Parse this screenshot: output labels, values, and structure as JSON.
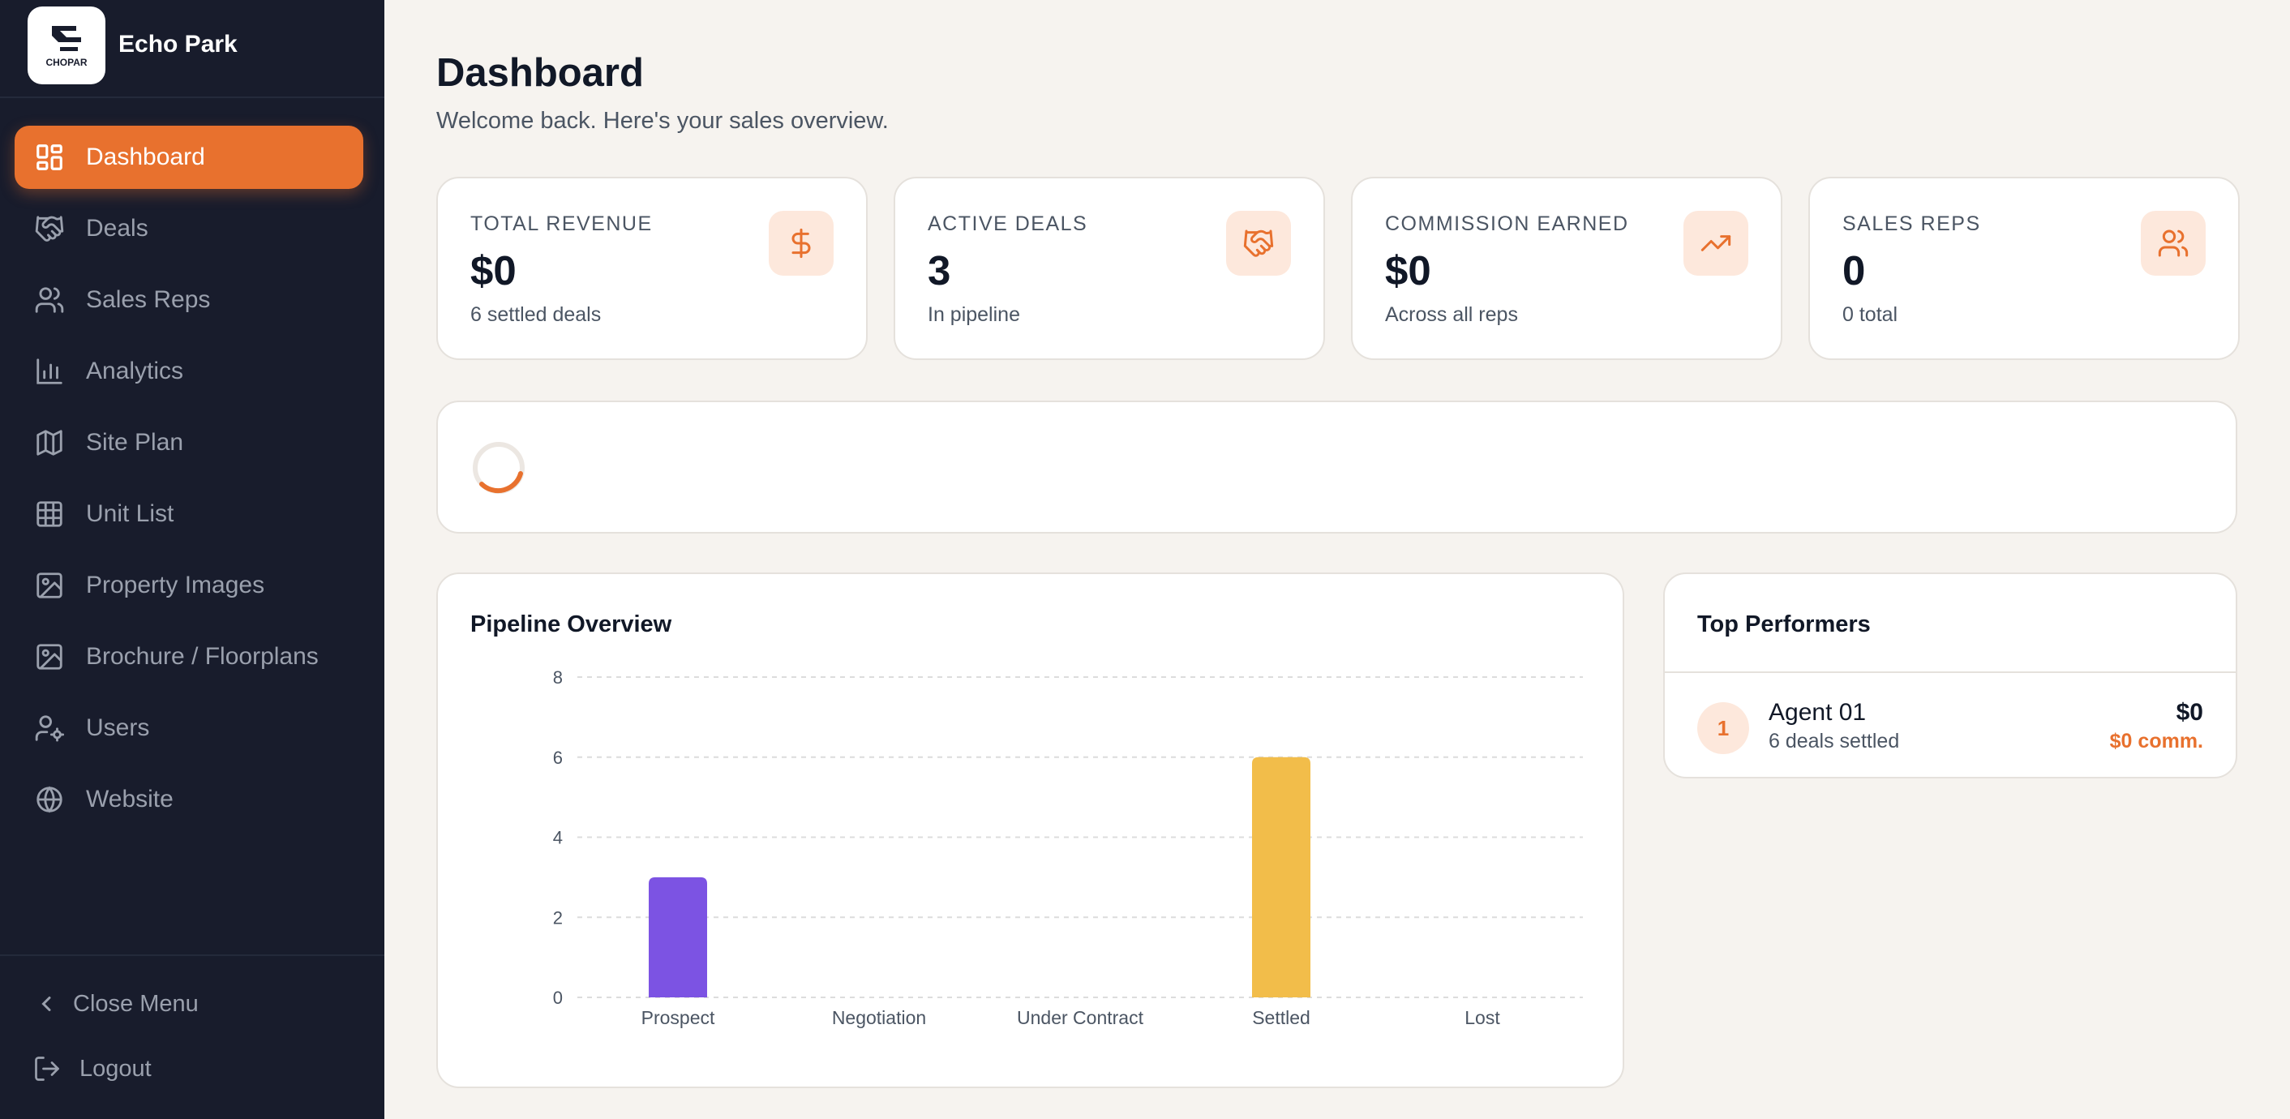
{
  "brand": {
    "name": "Echo Park",
    "logo_text": "CHOPAR"
  },
  "sidebar": {
    "items": [
      {
        "label": "Dashboard",
        "icon": "grid-icon",
        "active": true
      },
      {
        "label": "Deals",
        "icon": "handshake-icon"
      },
      {
        "label": "Sales Reps",
        "icon": "users-icon"
      },
      {
        "label": "Analytics",
        "icon": "bar-chart-icon"
      },
      {
        "label": "Site Plan",
        "icon": "map-icon"
      },
      {
        "label": "Unit List",
        "icon": "table-grid-icon"
      },
      {
        "label": "Property Images",
        "icon": "image-icon"
      },
      {
        "label": "Brochure / Floorplans",
        "icon": "image-icon"
      },
      {
        "label": "Users",
        "icon": "user-cog-icon"
      },
      {
        "label": "Website",
        "icon": "globe-icon"
      }
    ],
    "close_menu": "Close Menu",
    "logout": "Logout"
  },
  "header": {
    "title": "Dashboard",
    "subtitle": "Welcome back. Here's your sales overview."
  },
  "stats": [
    {
      "label": "TOTAL REVENUE",
      "value": "$0",
      "sub": "6 settled deals",
      "icon": "dollar-icon"
    },
    {
      "label": "ACTIVE DEALS",
      "value": "3",
      "sub": "In pipeline",
      "icon": "handshake-icon"
    },
    {
      "label": "COMMISSION EARNED",
      "value": "$0",
      "sub": "Across all reps",
      "icon": "trending-up-icon"
    },
    {
      "label": "SALES REPS",
      "value": "0",
      "sub": "0 total",
      "icon": "users-icon"
    }
  ],
  "pipeline": {
    "title": "Pipeline Overview"
  },
  "chart_data": {
    "type": "bar",
    "title": "Pipeline Overview",
    "categories": [
      "Prospect",
      "Negotiation",
      "Under Contract",
      "Settled",
      "Lost"
    ],
    "values": [
      3,
      0,
      0,
      6,
      0
    ],
    "colors": [
      "#7c53e3",
      "#7c53e3",
      "#7c53e3",
      "#f2bd4a",
      "#7c53e3"
    ],
    "yticks": [
      0,
      2,
      4,
      6,
      8
    ],
    "ylim": [
      0,
      8
    ],
    "grid": true,
    "xlabel": "",
    "ylabel": ""
  },
  "top_performers": {
    "title": "Top Performers",
    "rows": [
      {
        "rank": "1",
        "name": "Agent 01",
        "sub": "6 deals settled",
        "amount": "$0",
        "commission": "$0 comm."
      }
    ]
  },
  "colors": {
    "accent": "#e8712e",
    "sidebar_bg": "#181c2c",
    "page_bg": "#f6f3ef"
  }
}
